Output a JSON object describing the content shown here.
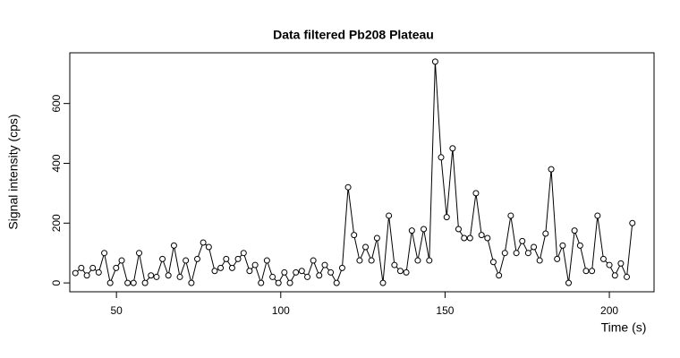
{
  "chart_data": {
    "type": "line",
    "title": "Data filtered Pb208 Plateau",
    "x_label": "Time (s)",
    "y_label": "Signal intensity (cps)",
    "xlim": [
      35.8,
      213.6
    ],
    "ylim": [
      -29.6,
      769.6
    ],
    "xticks": [
      50,
      100,
      150,
      200
    ],
    "yticks": [
      0,
      200,
      400,
      600
    ],
    "color": "#000000",
    "markers": true,
    "x": [
      37.5,
      39.3,
      41.0,
      42.8,
      44.6,
      46.3,
      48.1,
      49.9,
      51.6,
      53.4,
      55.2,
      56.9,
      58.7,
      60.5,
      62.2,
      64.0,
      65.8,
      67.5,
      69.3,
      71.1,
      72.8,
      74.6,
      76.4,
      78.1,
      79.9,
      81.7,
      83.4,
      85.2,
      87.0,
      88.7,
      90.5,
      92.2,
      94.0,
      95.8,
      97.5,
      99.3,
      101.1,
      102.8,
      104.6,
      106.4,
      108.1,
      109.9,
      111.7,
      113.4,
      115.2,
      117.0,
      118.7,
      120.5,
      122.3,
      124.0,
      125.8,
      127.6,
      129.3,
      131.1,
      132.9,
      134.6,
      136.4,
      138.2,
      139.9,
      141.7,
      143.5,
      145.2,
      147.0,
      148.8,
      150.5,
      152.3,
      154.1,
      155.8,
      157.6,
      159.4,
      161.1,
      162.9,
      164.7,
      166.4,
      168.2,
      170.0,
      171.7,
      173.5,
      175.3,
      177.0,
      178.8,
      180.6,
      182.3,
      184.1,
      185.8,
      187.6,
      189.4,
      191.1,
      192.9,
      194.7,
      196.4,
      198.2,
      200.0,
      201.7,
      203.5,
      205.3,
      207.0
    ],
    "values": [
      33,
      50,
      25,
      50,
      35,
      100,
      0,
      50,
      75,
      0,
      0,
      100,
      0,
      25,
      20,
      80,
      25,
      125,
      20,
      75,
      0,
      80,
      135,
      120,
      40,
      50,
      80,
      50,
      80,
      100,
      40,
      60,
      0,
      75,
      20,
      0,
      35,
      0,
      35,
      40,
      20,
      75,
      25,
      60,
      35,
      0,
      50,
      320,
      160,
      75,
      120,
      75,
      150,
      0,
      225,
      60,
      40,
      35,
      175,
      75,
      180,
      75,
      740,
      420,
      220,
      450,
      180,
      150,
      150,
      300,
      160,
      150,
      70,
      25,
      100,
      225,
      100,
      140,
      100,
      120,
      75,
      165,
      380,
      80,
      125,
      0,
      175,
      125,
      40,
      40,
      225,
      80,
      60,
      25,
      65,
      20,
      200
    ]
  }
}
